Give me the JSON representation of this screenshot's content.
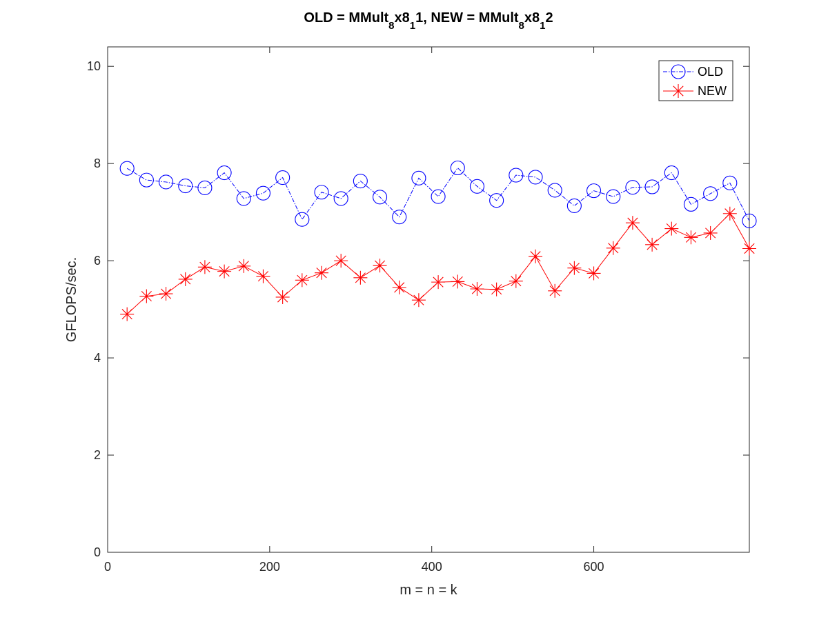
{
  "chart_data": {
    "type": "line",
    "title": {
      "parts": [
        {
          "text": "OLD = MMult",
          "sub": false
        },
        {
          "text": "8",
          "sub": true
        },
        {
          "text": "x8",
          "sub": false
        },
        {
          "text": "1",
          "sub": true
        },
        {
          "text": "1, NEW = MMult",
          "sub": false
        },
        {
          "text": "8",
          "sub": true
        },
        {
          "text": "x8",
          "sub": false
        },
        {
          "text": "1",
          "sub": true
        },
        {
          "text": "2",
          "sub": false
        }
      ]
    },
    "xlabel": "m = n = k",
    "ylabel": "GFLOPS/sec.",
    "xlim": [
      0,
      792
    ],
    "ylim": [
      0,
      10.4
    ],
    "xticks": [
      0,
      200,
      400,
      600
    ],
    "xtick_labels": [
      "0",
      "200",
      "400",
      "600"
    ],
    "yticks": [
      0,
      2,
      4,
      6,
      8,
      10
    ],
    "ytick_labels": [
      "0",
      "2",
      "4",
      "6",
      "8",
      "10"
    ],
    "grid": false,
    "legend": {
      "placement": "top-right"
    },
    "x": [
      24,
      48,
      72,
      96,
      120,
      144,
      168,
      192,
      216,
      240,
      264,
      288,
      312,
      336,
      360,
      384,
      408,
      432,
      456,
      480,
      504,
      528,
      552,
      576,
      600,
      624,
      648,
      672,
      696,
      720,
      744,
      768,
      792
    ],
    "series": [
      {
        "name": "OLD",
        "color": "#0000ff",
        "line_style": "dash-dot",
        "marker": "circle",
        "values": [
          7.9,
          7.66,
          7.62,
          7.54,
          7.5,
          7.81,
          7.28,
          7.39,
          7.71,
          6.85,
          7.41,
          7.28,
          7.64,
          7.31,
          6.9,
          7.7,
          7.32,
          7.91,
          7.53,
          7.24,
          7.76,
          7.72,
          7.45,
          7.13,
          7.44,
          7.32,
          7.51,
          7.52,
          7.81,
          7.16,
          7.38,
          7.6,
          6.82
        ]
      },
      {
        "name": "NEW",
        "color": "#ff0000",
        "line_style": "solid",
        "marker": "asterisk",
        "values": [
          4.9,
          5.27,
          5.32,
          5.62,
          5.87,
          5.78,
          5.89,
          5.68,
          5.25,
          5.6,
          5.75,
          6.0,
          5.65,
          5.9,
          5.45,
          5.19,
          5.56,
          5.57,
          5.42,
          5.41,
          5.58,
          6.09,
          5.38,
          5.85,
          5.74,
          6.26,
          6.78,
          6.33,
          6.66,
          6.48,
          6.57,
          6.97,
          6.25
        ]
      }
    ]
  }
}
